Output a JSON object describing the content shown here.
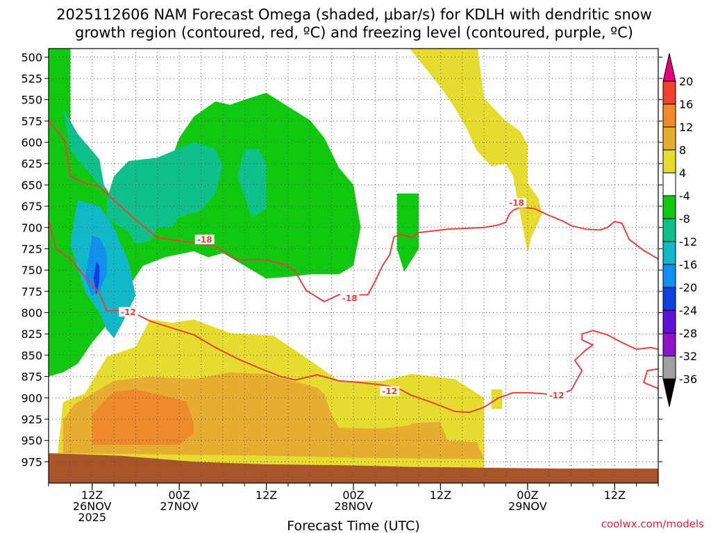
{
  "title": {
    "line1": "2025112606 NAM Forecast Omega (shaded, μbar/s) for KDLH with dendritic snow",
    "line2": "growth region (contoured, red, ºC) and freezing level (contoured, purple, ºC)"
  },
  "credit": "coolwx.com/models",
  "chart_data": {
    "type": "heatmap",
    "xlabel": "Forecast Time (UTC)",
    "x_range_hours": [
      0,
      84
    ],
    "y_pressure_range_hPa": [
      490,
      1000
    ],
    "y_ticks": [
      500,
      525,
      550,
      575,
      600,
      625,
      650,
      675,
      700,
      725,
      750,
      775,
      800,
      825,
      850,
      875,
      900,
      925,
      950,
      975
    ],
    "x_ticks": [
      {
        "hour": 6,
        "l1": "12Z",
        "l2": "26NOV",
        "l3": "2025"
      },
      {
        "hour": 18,
        "l1": "00Z",
        "l2": "27NOV",
        "l3": ""
      },
      {
        "hour": 30,
        "l1": "12Z",
        "l2": "",
        "l3": ""
      },
      {
        "hour": 42,
        "l1": "00Z",
        "l2": "28NOV",
        "l3": ""
      },
      {
        "hour": 54,
        "l1": "12Z",
        "l2": "",
        "l3": ""
      },
      {
        "hour": 66,
        "l1": "00Z",
        "l2": "29NOV",
        "l3": ""
      },
      {
        "hour": 78,
        "l1": "12Z",
        "l2": "",
        "l3": ""
      }
    ],
    "grid": true,
    "colorbar": {
      "labels": [
        "20",
        "16",
        "12",
        "8",
        "4",
        "-4",
        "-8",
        "-12",
        "-16",
        "-20",
        "-24",
        "-28",
        "-32",
        "-36"
      ],
      "colors": {
        "gt20": "#e8007a",
        "16_20": "#f04030",
        "12_16": "#ee8a2c",
        "8_12": "#e6ad30",
        "4_8": "#e6dc30",
        "neg4_4": "#ffffff",
        "neg8_neg4": "#10c810",
        "neg12_neg8": "#10c08a",
        "neg16_neg12": "#10b8c8",
        "neg20_neg16": "#1090f0",
        "neg24_neg20": "#1040e0",
        "neg28_neg24": "#6010d8",
        "neg32_neg28": "#9010c8",
        "neg36_neg32": "#a0a0a0",
        "lt36": "#000000"
      }
    },
    "ground_color": "#a8552c",
    "contour_labels": [
      {
        "value": "-18",
        "hour": 21.5,
        "p": 714
      },
      {
        "value": "-18",
        "hour": 41.5,
        "p": 783
      },
      {
        "value": "-18",
        "hour": 64.5,
        "p": 671
      },
      {
        "value": "-12",
        "hour": 11,
        "p": 799
      },
      {
        "value": "-12",
        "hour": 47,
        "p": 892
      },
      {
        "value": "-12",
        "hour": 70,
        "p": 897
      }
    ],
    "contour_isotherms": [
      {
        "value": -18,
        "points": [
          [
            0,
            574
          ],
          [
            2.2,
            598
          ],
          [
            3,
            640
          ],
          [
            5,
            648
          ],
          [
            7,
            652
          ],
          [
            9,
            668
          ],
          [
            12,
            691
          ],
          [
            15,
            712
          ],
          [
            20,
            718
          ],
          [
            23,
            722
          ],
          [
            26,
            738
          ],
          [
            30,
            738
          ],
          [
            33,
            745
          ],
          [
            34,
            752
          ],
          [
            35.5,
            774
          ],
          [
            38,
            787
          ],
          [
            40,
            779
          ],
          [
            44,
            779
          ],
          [
            45,
            763
          ],
          [
            46,
            745
          ],
          [
            47,
            732
          ],
          [
            47.6,
            711
          ],
          [
            48.5,
            708
          ],
          [
            50,
            712
          ],
          [
            51,
            706
          ],
          [
            55,
            702
          ],
          [
            60,
            700
          ],
          [
            62,
            697
          ],
          [
            63,
            694
          ],
          [
            63.5,
            684
          ],
          [
            64,
            680
          ],
          [
            65,
            676
          ],
          [
            67,
            678
          ],
          [
            69,
            686
          ],
          [
            71,
            693
          ],
          [
            72,
            698
          ],
          [
            74,
            702
          ],
          [
            76,
            703
          ],
          [
            77,
            700
          ],
          [
            78,
            693
          ],
          [
            79,
            695
          ],
          [
            80,
            714
          ],
          [
            82,
            727
          ],
          [
            84,
            737
          ]
        ]
      },
      {
        "value": -12,
        "points": [
          [
            0,
            692
          ],
          [
            1,
            725
          ],
          [
            3,
            737
          ],
          [
            5,
            758
          ],
          [
            7,
            777
          ],
          [
            8,
            798
          ],
          [
            11,
            797
          ],
          [
            14,
            810
          ],
          [
            17,
            818
          ],
          [
            20,
            826
          ],
          [
            23,
            841
          ],
          [
            26,
            854
          ],
          [
            29,
            865
          ],
          [
            32,
            875
          ],
          [
            34,
            879
          ],
          [
            37,
            873
          ],
          [
            40,
            880
          ],
          [
            43,
            882
          ],
          [
            46,
            885
          ],
          [
            48,
            888
          ],
          [
            50,
            897
          ],
          [
            53,
            906
          ],
          [
            56,
            916
          ],
          [
            58,
            917
          ],
          [
            60,
            911
          ],
          [
            62,
            900
          ],
          [
            64,
            894
          ],
          [
            66,
            894
          ],
          [
            68,
            895
          ],
          [
            70,
            897
          ],
          [
            72,
            891
          ],
          [
            73.5,
            868
          ],
          [
            72.5,
            856
          ],
          [
            74,
            844
          ],
          [
            75,
            838
          ],
          [
            73.5,
            832
          ],
          [
            73.5,
            825
          ],
          [
            75,
            821
          ],
          [
            77,
            826
          ],
          [
            79,
            835
          ],
          [
            81,
            843
          ],
          [
            83,
            841
          ],
          [
            84,
            843
          ]
        ]
      },
      {
        "value": -12,
        "points": [
          [
            84,
            866
          ],
          [
            82.5,
            868
          ],
          [
            82,
            882
          ],
          [
            84,
            889
          ]
        ]
      }
    ],
    "omega_regions": [
      {
        "band": "4_8",
        "points": [
          [
            2,
            905
          ],
          [
            1,
            985
          ],
          [
            60,
            985
          ],
          [
            60,
            900
          ],
          [
            56,
            878
          ],
          [
            50,
            872
          ],
          [
            46,
            880
          ],
          [
            40,
            880
          ],
          [
            36,
            856
          ],
          [
            31,
            827
          ],
          [
            25,
            824
          ],
          [
            20,
            808
          ],
          [
            17,
            812
          ],
          [
            14,
            808
          ],
          [
            12,
            840
          ],
          [
            8,
            852
          ],
          [
            5,
            895
          ]
        ]
      },
      {
        "band": "4_8",
        "points": [
          [
            61,
            890
          ],
          [
            61,
            913
          ],
          [
            62.5,
            913
          ],
          [
            62.5,
            890
          ]
        ]
      },
      {
        "band": "4_8",
        "points": [
          [
            49,
            482
          ],
          [
            59,
            482
          ],
          [
            60,
            548
          ],
          [
            63,
            575
          ],
          [
            65,
            587
          ],
          [
            66,
            603
          ],
          [
            66,
            648
          ],
          [
            67.5,
            666
          ],
          [
            68,
            684
          ],
          [
            66.5,
            712
          ],
          [
            66,
            730
          ],
          [
            65,
            685
          ],
          [
            64,
            640
          ],
          [
            63,
            625
          ],
          [
            61,
            628
          ],
          [
            59,
            610
          ],
          [
            57.5,
            582
          ],
          [
            56,
            560
          ],
          [
            54,
            535
          ]
        ]
      },
      {
        "band": "8_12",
        "points": [
          [
            2,
            926
          ],
          [
            2,
            965
          ],
          [
            30,
            968
          ],
          [
            41,
            970
          ],
          [
            60,
            972
          ],
          [
            59,
            952
          ],
          [
            55,
            950
          ],
          [
            54,
            930
          ],
          [
            50,
            932
          ],
          [
            48,
            934
          ],
          [
            46,
            936
          ],
          [
            44,
            936
          ],
          [
            40,
            935
          ],
          [
            39,
            920
          ],
          [
            38,
            896
          ],
          [
            37,
            888
          ],
          [
            30,
            872
          ],
          [
            25,
            870
          ],
          [
            20,
            878
          ],
          [
            14,
            875
          ],
          [
            9,
            880
          ],
          [
            5,
            900
          ],
          [
            3.5,
            908
          ]
        ]
      },
      {
        "band": "8_12",
        "points": [
          [
            49,
            942
          ],
          [
            49,
            958
          ],
          [
            54,
            958
          ],
          [
            54,
            928
          ],
          [
            50,
            930
          ]
        ]
      },
      {
        "band": "12_16",
        "points": [
          [
            6,
            920
          ],
          [
            6,
            955
          ],
          [
            18,
            955
          ],
          [
            20,
            942
          ],
          [
            20,
            930
          ],
          [
            19,
            904
          ],
          [
            16,
            898
          ],
          [
            12,
            890
          ],
          [
            9,
            893
          ],
          [
            7.5,
            905
          ]
        ]
      },
      {
        "band": "neg8_neg4",
        "points": [
          [
            0,
            490
          ],
          [
            3,
            490
          ],
          [
            3,
            580
          ],
          [
            3,
            600
          ],
          [
            5,
            615
          ],
          [
            6,
            632
          ],
          [
            8,
            655
          ],
          [
            9,
            670
          ],
          [
            12,
            676
          ],
          [
            14,
            672
          ],
          [
            16,
            645
          ],
          [
            17,
            618
          ],
          [
            18,
            595
          ],
          [
            20,
            570
          ],
          [
            23,
            552
          ],
          [
            25,
            556
          ],
          [
            27,
            550
          ],
          [
            30,
            542
          ],
          [
            33,
            558
          ],
          [
            36,
            574
          ],
          [
            38,
            595
          ],
          [
            40,
            630
          ],
          [
            42,
            650
          ],
          [
            43,
            700
          ],
          [
            42,
            745
          ],
          [
            40,
            755
          ],
          [
            36,
            755
          ],
          [
            33,
            758
          ],
          [
            30,
            760
          ],
          [
            26,
            740
          ],
          [
            24,
            730
          ],
          [
            22,
            735
          ],
          [
            20,
            728
          ],
          [
            16,
            735
          ],
          [
            13,
            745
          ],
          [
            11,
            770
          ],
          [
            8,
            815
          ],
          [
            6,
            835
          ],
          [
            4,
            860
          ],
          [
            2,
            870
          ],
          [
            0,
            875
          ]
        ]
      },
      {
        "band": "neg8_neg4",
        "points": [
          [
            48,
            660
          ],
          [
            51,
            660
          ],
          [
            51,
            725
          ],
          [
            49,
            752
          ],
          [
            48,
            725
          ]
        ]
      },
      {
        "band": "neg12_neg8",
        "points": [
          [
            0,
            540
          ],
          [
            2,
            560
          ],
          [
            3,
            610
          ],
          [
            6,
            640
          ],
          [
            8,
            660
          ],
          [
            8,
            690
          ],
          [
            11,
            705
          ],
          [
            12,
            720
          ],
          [
            14,
            716
          ],
          [
            15,
            700
          ],
          [
            17,
            700
          ],
          [
            18,
            688
          ],
          [
            21,
            680
          ],
          [
            23,
            660
          ],
          [
            24,
            628
          ],
          [
            23,
            608
          ],
          [
            20,
            600
          ],
          [
            15,
            618
          ],
          [
            13,
            620
          ],
          [
            11,
            622
          ],
          [
            9,
            640
          ],
          [
            8,
            668
          ],
          [
            7,
            620
          ],
          [
            4,
            590
          ],
          [
            2,
            560
          ]
        ]
      },
      {
        "band": "neg12_neg8",
        "points": [
          [
            27,
            608
          ],
          [
            29,
            608
          ],
          [
            30,
            625
          ],
          [
            30,
            678
          ],
          [
            28,
            688
          ],
          [
            26,
            640
          ]
        ]
      },
      {
        "band": "neg16_neg12",
        "points": [
          [
            4,
            668
          ],
          [
            3,
            720
          ],
          [
            5,
            775
          ],
          [
            7,
            800
          ],
          [
            8,
            820
          ],
          [
            9,
            830
          ],
          [
            10,
            815
          ],
          [
            12,
            780
          ],
          [
            11,
            740
          ],
          [
            9,
            700
          ],
          [
            7,
            675
          ]
        ]
      },
      {
        "band": "neg20_neg16",
        "points": [
          [
            6,
            710
          ],
          [
            5,
            760
          ],
          [
            6,
            780
          ],
          [
            7,
            775
          ],
          [
            8,
            755
          ],
          [
            8,
            730
          ],
          [
            7,
            712
          ]
        ]
      },
      {
        "band": "neg24_neg20",
        "points": [
          [
            6.6,
            740
          ],
          [
            6.2,
            760
          ],
          [
            6.6,
            780
          ],
          [
            7,
            762
          ],
          [
            7,
            745
          ]
        ]
      }
    ],
    "ground": [
      [
        0,
        965
      ],
      [
        10,
        968
      ],
      [
        20,
        975
      ],
      [
        30,
        978
      ],
      [
        40,
        979
      ],
      [
        50,
        981
      ],
      [
        60,
        982
      ],
      [
        70,
        983
      ],
      [
        84,
        983
      ]
    ]
  }
}
